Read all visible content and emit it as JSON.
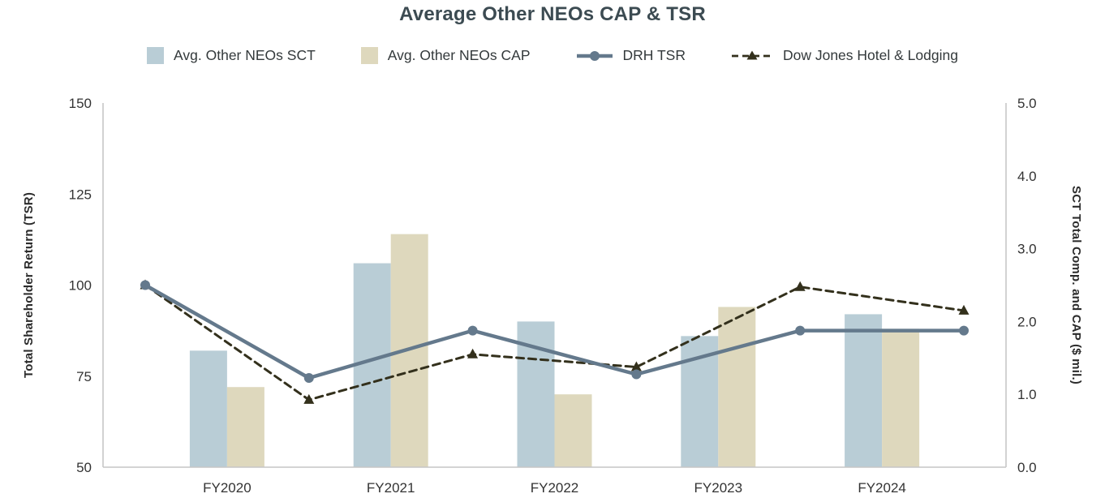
{
  "title": "Average Other NEOs CAP & TSR",
  "legend": [
    {
      "label": "Avg. Other NEOs SCT",
      "type": "bar",
      "color": "#b9cdd6"
    },
    {
      "label": "Avg. Other NEOs CAP",
      "type": "bar",
      "color": "#ded8bd"
    },
    {
      "label": "DRH TSR",
      "type": "line-circle",
      "color": "#64798c"
    },
    {
      "label": "Dow Jones Hotel & Lodging",
      "type": "dashed-triangle",
      "color": "#33301c"
    }
  ],
  "chart_data": {
    "type": "combo-bar-line",
    "title": "Average Other NEOs CAP & TSR",
    "categories": [
      "FY2020",
      "FY2021",
      "FY2022",
      "FY2023",
      "FY2024"
    ],
    "bar_series": [
      {
        "name": "Avg. Other NEOs SCT",
        "axis": "right",
        "color": "#b9cdd6",
        "values": [
          1.6,
          2.8,
          2.0,
          1.8,
          2.1
        ]
      },
      {
        "name": "Avg. Other NEOs CAP",
        "axis": "right",
        "color": "#ded8bd",
        "values": [
          1.1,
          3.2,
          1.0,
          2.2,
          1.9
        ]
      }
    ],
    "line_series": [
      {
        "name": "DRH TSR",
        "axis": "left",
        "style": "solid",
        "marker": "circle",
        "color": "#64798c",
        "values": [
          100,
          74.5,
          87.5,
          75.5,
          87.5,
          87.5
        ]
      },
      {
        "name": "Dow Jones Hotel & Lodging",
        "axis": "left",
        "style": "dashed",
        "marker": "triangle",
        "color": "#33301c",
        "values": [
          100,
          68.5,
          81,
          77.5,
          99.5,
          93
        ]
      }
    ],
    "line_x_positions": "category-boundaries",
    "left_axis": {
      "title": "Total Shareholder Return (TSR)",
      "min": 50,
      "max": 150,
      "ticks": [
        150,
        125,
        100,
        75,
        50
      ]
    },
    "right_axis": {
      "title": "SCT Total Comp. and CAP ($ mil.)",
      "min": 0,
      "max": 5,
      "ticks": [
        "5.0",
        "4.0",
        "3.0",
        "2.0",
        "1.0",
        "0.0"
      ]
    },
    "grid": false,
    "legend_position": "top"
  }
}
